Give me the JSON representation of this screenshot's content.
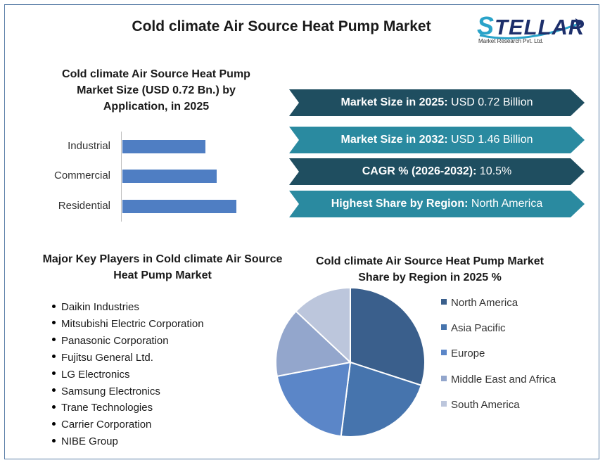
{
  "header": {
    "title": "Cold climate Air Source Heat Pump Market",
    "logo_text": "TELLAR",
    "logo_initial": "S",
    "logo_tagline": "Market Research Pvt. Ltd."
  },
  "bar_section": {
    "title_line1": "Cold climate Air Source Heat Pump",
    "title_line2": "Market Size (USD 0.72 Bn.) by",
    "title_line3": "Application, in 2025"
  },
  "banners": [
    {
      "label": "Market Size in 2025:",
      "value": " USD 0.72 Billion",
      "color": "#1f4e60"
    },
    {
      "label": "Market Size in 2032:",
      "value": " USD 1.46 Billion",
      "color": "#2a8aa0"
    },
    {
      "label": "CAGR % (2026-2032):",
      "value": " 10.5%",
      "color": "#1f4e60"
    },
    {
      "label": "Highest Share by Region:",
      "value": " North America",
      "color": "#2a8aa0"
    }
  ],
  "players_section": {
    "title_line1": "Major Key Players in Cold climate Air Source",
    "title_line2": "Heat Pump Market",
    "items": [
      "Daikin Industries",
      "Mitsubishi Electric Corporation",
      "Panasonic Corporation",
      "Fujitsu General Ltd.",
      "LG Electronics",
      "Samsung Electronics",
      "Trane Technologies",
      "Carrier Corporation",
      "NIBE Group"
    ]
  },
  "pie_section": {
    "title_line1": "Cold climate Air Source Heat Pump Market",
    "title_line2": "Share by Region in 2025 %"
  },
  "chart_data": [
    {
      "type": "bar",
      "orientation": "horizontal",
      "title": "Cold climate Air Source Heat Pump Market Size (USD 0.72 Bn.) by Application, in 2025",
      "categories": [
        "Industrial",
        "Commercial",
        "Residential"
      ],
      "values": [
        0.21,
        0.24,
        0.29
      ],
      "bar_color": "#4f7ec3",
      "grid": false
    },
    {
      "type": "pie",
      "title": "Cold climate Air Source Heat Pump Market Share by Region in 2025 %",
      "labels": [
        "North America",
        "Asia Pacific",
        "Europe",
        "Middle East and Africa",
        "South America"
      ],
      "values": [
        30,
        22,
        20,
        15,
        13
      ],
      "colors": [
        "#3a5f8c",
        "#4674ad",
        "#5b86c8",
        "#93a6cc",
        "#bcc6dc"
      ],
      "legend": "right"
    }
  ]
}
